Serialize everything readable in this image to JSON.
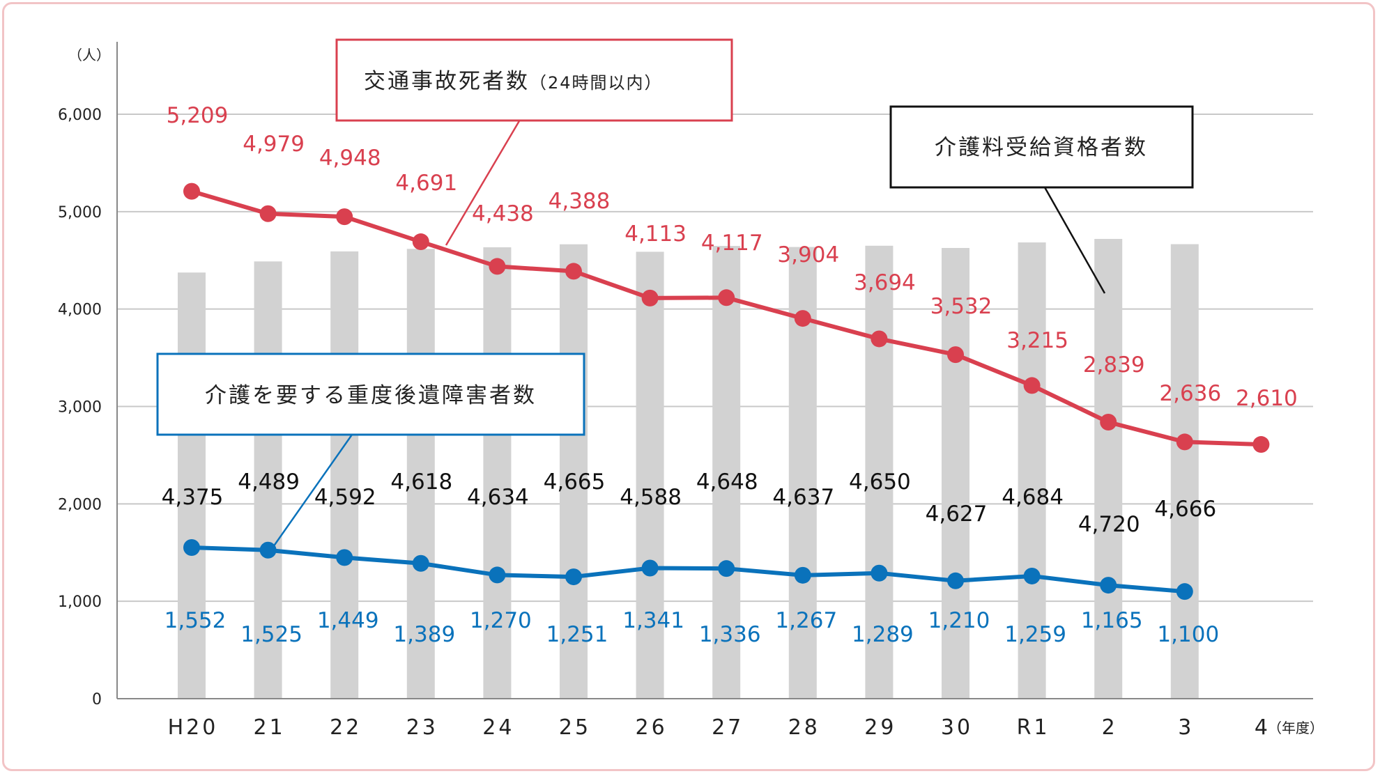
{
  "colors": {
    "deaths": "#d9404f",
    "care": "#0a72bb",
    "bar": "#d2d2d2",
    "bar_label": "#111111",
    "grid": "#c8c8c8",
    "frame": "#f2c4c6"
  },
  "callouts": {
    "deaths_main": "交通事故死者数",
    "deaths_sub": "（24時間以内）",
    "bars": "介護料受給資格者数",
    "care": "介護を要する重度後遺障害者数"
  },
  "chart_data": {
    "type": "bar",
    "categories": [
      "H20",
      "21",
      "22",
      "23",
      "24",
      "25",
      "26",
      "27",
      "28",
      "29",
      "30",
      "R1",
      "2",
      "3",
      "4"
    ],
    "y_unit": "（人）",
    "x_unit": "（年度）",
    "ylim": [
      0,
      6000
    ],
    "yticks": [
      0,
      1000,
      2000,
      3000,
      4000,
      5000,
      6000
    ],
    "ytick_labels": [
      "0",
      "1,000",
      "2,000",
      "3,000",
      "4,000",
      "5,000",
      "6,000"
    ],
    "grid": true,
    "series": [
      {
        "name": "介護料受給資格者数",
        "type": "bar",
        "values": [
          4375,
          4489,
          4592,
          4618,
          4634,
          4665,
          4588,
          4648,
          4637,
          4650,
          4627,
          4684,
          4720,
          4666,
          null
        ],
        "labels": [
          "4,375",
          "4,489",
          "4,592",
          "4,618",
          "4,634",
          "4,665",
          "4,588",
          "4,648",
          "4,637",
          "4,650",
          "4,627",
          "4,684",
          "4,720",
          "4,666",
          ""
        ]
      },
      {
        "name": "交通事故死者数（24時間以内）",
        "type": "line",
        "values": [
          5209,
          4979,
          4948,
          4691,
          4438,
          4388,
          4113,
          4117,
          3904,
          3694,
          3532,
          3215,
          2839,
          2636,
          2610
        ],
        "labels": [
          "5,209",
          "4,979",
          "4,948",
          "4,691",
          "4,438",
          "4,388",
          "4,113",
          "4,117",
          "3,904",
          "3,694",
          "3,532",
          "3,215",
          "2,839",
          "2,636",
          "2,610"
        ]
      },
      {
        "name": "介護を要する重度後遺障害者数",
        "type": "line",
        "values": [
          1552,
          1525,
          1449,
          1389,
          1270,
          1251,
          1341,
          1336,
          1267,
          1289,
          1210,
          1259,
          1165,
          1100,
          null
        ],
        "labels": [
          "1,552",
          "1,525",
          "1,449",
          "1,389",
          "1,270",
          "1,251",
          "1,341",
          "1,336",
          "1,267",
          "1,289",
          "1,210",
          "1,259",
          "1,165",
          "1,100",
          ""
        ]
      }
    ]
  }
}
